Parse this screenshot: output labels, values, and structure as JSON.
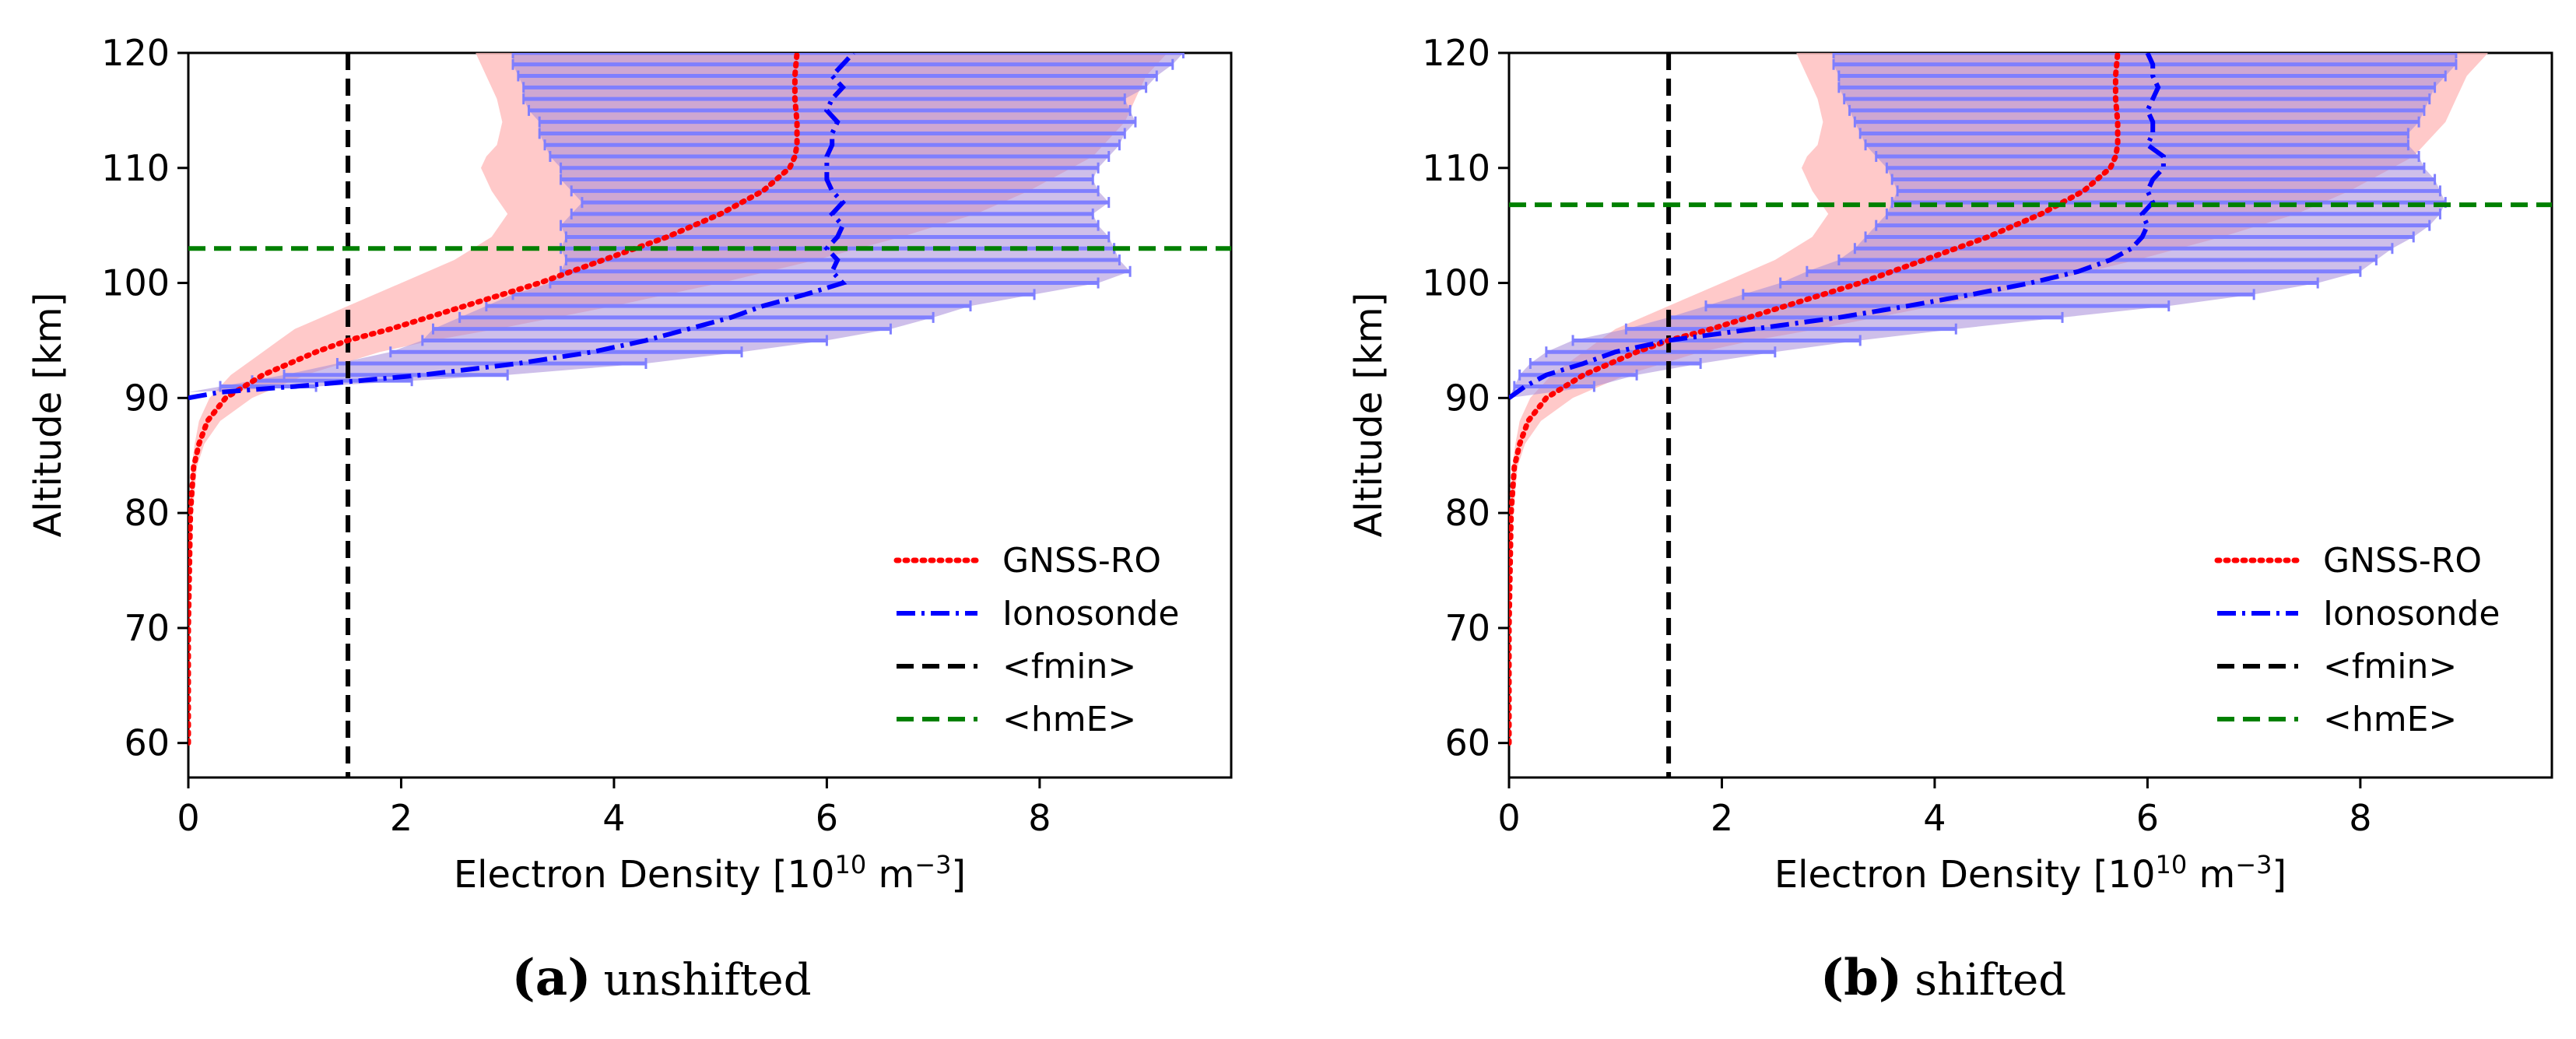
{
  "figure": {
    "captions": [
      {
        "letter": "(a)",
        "text": "unshifted"
      },
      {
        "letter": "(b)",
        "text": "shifted"
      }
    ]
  },
  "colors": {
    "gnss": "#ff0000",
    "ionosonde": "#0000ff",
    "fmin": "#000000",
    "hme": "#008000",
    "gnss_band": "#ffbcbc",
    "iono_bar": "#7f7fff",
    "iono_band": "#a58bd8"
  },
  "chart_data": [
    {
      "id": "a",
      "type": "line",
      "title": "",
      "xlabel": "Electron Density [10",
      "xlabel_sup1": "10",
      "xlabel_mid": " m",
      "xlabel_sup2": "−3",
      "xlabel_end": "]",
      "ylabel": "Altitude [km]",
      "xlim": [
        0,
        9.8
      ],
      "ylim": [
        57,
        120
      ],
      "xticks": [
        0,
        2,
        4,
        6,
        8
      ],
      "xtick_labels": [
        "0",
        "2",
        "4",
        "6",
        "8"
      ],
      "yticks": [
        60,
        70,
        80,
        90,
        100,
        110,
        120
      ],
      "ytick_labels": [
        "60",
        "70",
        "80",
        "90",
        "100",
        "110",
        "120"
      ],
      "legend": {
        "position": "lower-right",
        "entries": [
          "GNSS-RO",
          "Ionosonde",
          "<fmin>",
          "<hmE>"
        ]
      },
      "series": [
        {
          "name": "GNSS-RO",
          "style": "dotted",
          "altitude": [
            60,
            70,
            80,
            84,
            86,
            88,
            90,
            92,
            94,
            95,
            96,
            98,
            100,
            102,
            104,
            106,
            108,
            110,
            111,
            112,
            114,
            116,
            118,
            120
          ],
          "density": [
            0.0,
            0.0,
            0.02,
            0.05,
            0.1,
            0.18,
            0.35,
            0.7,
            1.2,
            1.5,
            1.9,
            2.6,
            3.3,
            3.9,
            4.5,
            5.0,
            5.4,
            5.65,
            5.7,
            5.72,
            5.72,
            5.7,
            5.7,
            5.72
          ],
          "band_low": [
            0.0,
            0.0,
            0.01,
            0.03,
            0.06,
            0.1,
            0.2,
            0.4,
            0.7,
            0.85,
            1.0,
            1.5,
            2.0,
            2.5,
            2.85,
            3.0,
            2.85,
            2.75,
            2.8,
            2.9,
            2.95,
            2.9,
            2.8,
            2.7
          ],
          "band_high": [
            0.0,
            0.0,
            0.04,
            0.08,
            0.15,
            0.3,
            0.6,
            1.1,
            1.8,
            2.3,
            2.9,
            4.0,
            5.0,
            5.9,
            6.7,
            7.4,
            7.9,
            8.3,
            8.5,
            8.6,
            8.8,
            8.9,
            9.0,
            9.2
          ]
        },
        {
          "name": "Ionosonde",
          "style": "dashdot",
          "altitude": [
            90,
            90.5,
            91,
            91.5,
            92,
            93,
            94,
            95,
            96,
            97,
            98,
            99,
            100,
            101,
            102,
            103,
            104,
            105,
            106,
            107,
            108,
            109,
            110,
            111,
            112,
            113,
            114,
            115,
            116,
            117,
            118,
            119,
            120
          ],
          "density": [
            0.0,
            0.3,
            1.0,
            1.6,
            2.2,
            3.1,
            3.8,
            4.3,
            4.7,
            5.1,
            5.4,
            5.8,
            6.15,
            6.05,
            6.1,
            6.0,
            6.1,
            6.15,
            6.05,
            6.15,
            6.05,
            6.0,
            6.0,
            6.0,
            6.05,
            6.05,
            6.1,
            6.0,
            6.05,
            6.15,
            6.05,
            6.15,
            6.25
          ],
          "err_low": [
            0.0,
            0.0,
            0.3,
            0.6,
            0.9,
            1.4,
            1.9,
            2.2,
            2.3,
            2.55,
            2.8,
            3.05,
            3.4,
            3.5,
            3.55,
            3.5,
            3.55,
            3.5,
            3.6,
            3.7,
            3.6,
            3.5,
            3.5,
            3.4,
            3.35,
            3.3,
            3.3,
            3.2,
            3.15,
            3.15,
            3.1,
            3.05,
            3.05
          ],
          "err_high": [
            0.0,
            0.0,
            1.2,
            2.1,
            3.0,
            4.3,
            5.2,
            6.0,
            6.6,
            7.0,
            7.35,
            7.95,
            8.55,
            8.85,
            8.75,
            8.7,
            8.65,
            8.55,
            8.5,
            8.65,
            8.55,
            8.5,
            8.55,
            8.65,
            8.75,
            8.8,
            8.9,
            8.85,
            8.8,
            9.0,
            9.1,
            9.25,
            9.35
          ]
        }
      ],
      "reference_lines": [
        {
          "name": "<fmin>",
          "orientation": "vertical",
          "value": 1.5
        },
        {
          "name": "<hmE>",
          "orientation": "horizontal",
          "value": 103
        }
      ]
    },
    {
      "id": "b",
      "type": "line",
      "title": "",
      "xlabel": "Electron Density [10",
      "xlabel_sup1": "10",
      "xlabel_mid": " m",
      "xlabel_sup2": "−3",
      "xlabel_end": "]",
      "ylabel": "Altitude [km]",
      "xlim": [
        0,
        9.8
      ],
      "ylim": [
        57,
        120
      ],
      "xticks": [
        0,
        2,
        4,
        6,
        8
      ],
      "xtick_labels": [
        "0",
        "2",
        "4",
        "6",
        "8"
      ],
      "yticks": [
        60,
        70,
        80,
        90,
        100,
        110,
        120
      ],
      "ytick_labels": [
        "60",
        "70",
        "80",
        "90",
        "100",
        "110",
        "120"
      ],
      "legend": {
        "position": "lower-right",
        "entries": [
          "GNSS-RO",
          "Ionosonde",
          "<fmin>",
          "<hmE>"
        ]
      },
      "series": [
        {
          "name": "GNSS-RO",
          "style": "dotted",
          "altitude": [
            60,
            70,
            80,
            84,
            86,
            88,
            90,
            92,
            94,
            95,
            96,
            98,
            100,
            102,
            104,
            106,
            108,
            110,
            111,
            112,
            114,
            116,
            118,
            120
          ],
          "density": [
            0.0,
            0.0,
            0.02,
            0.05,
            0.1,
            0.18,
            0.35,
            0.7,
            1.2,
            1.5,
            1.9,
            2.6,
            3.3,
            3.9,
            4.5,
            5.0,
            5.4,
            5.65,
            5.7,
            5.72,
            5.72,
            5.7,
            5.7,
            5.72
          ],
          "band_low": [
            0.0,
            0.0,
            0.01,
            0.03,
            0.06,
            0.1,
            0.2,
            0.4,
            0.7,
            0.85,
            1.0,
            1.5,
            2.0,
            2.5,
            2.85,
            3.0,
            2.85,
            2.75,
            2.8,
            2.9,
            2.95,
            2.9,
            2.8,
            2.7
          ],
          "band_high": [
            0.0,
            0.0,
            0.04,
            0.08,
            0.15,
            0.3,
            0.6,
            1.1,
            1.8,
            2.3,
            2.9,
            4.0,
            5.0,
            5.9,
            6.7,
            7.4,
            7.9,
            8.3,
            8.5,
            8.6,
            8.8,
            8.9,
            9.0,
            9.2
          ]
        },
        {
          "name": "Ionosonde",
          "style": "dashdot",
          "altitude": [
            90,
            91,
            92,
            93,
            94,
            95,
            96,
            97,
            98,
            99,
            100,
            101,
            102,
            103,
            104,
            105,
            106,
            107,
            108,
            109,
            110,
            111,
            112,
            113,
            114,
            115,
            116,
            117,
            118,
            119,
            120
          ],
          "density": [
            0.0,
            0.15,
            0.35,
            0.7,
            1.0,
            1.5,
            2.3,
            3.1,
            3.75,
            4.35,
            4.9,
            5.35,
            5.65,
            5.85,
            5.95,
            6.0,
            5.95,
            6.05,
            6.0,
            6.05,
            6.15,
            6.15,
            6.0,
            6.05,
            6.05,
            6.0,
            6.05,
            6.1,
            6.05,
            6.05,
            6.0
          ],
          "err_low": [
            0.0,
            0.05,
            0.1,
            0.2,
            0.35,
            0.6,
            1.1,
            1.5,
            1.85,
            2.2,
            2.55,
            2.8,
            3.1,
            3.25,
            3.35,
            3.45,
            3.55,
            3.6,
            3.65,
            3.6,
            3.55,
            3.45,
            3.35,
            3.3,
            3.25,
            3.2,
            3.15,
            3.1,
            3.1,
            3.05,
            3.05
          ],
          "err_high": [
            0.0,
            0.8,
            1.2,
            1.8,
            2.5,
            3.3,
            4.2,
            5.2,
            6.2,
            7.0,
            7.6,
            8.0,
            8.15,
            8.3,
            8.5,
            8.65,
            8.75,
            8.8,
            8.75,
            8.7,
            8.6,
            8.55,
            8.45,
            8.45,
            8.55,
            8.6,
            8.65,
            8.7,
            8.8,
            8.9,
            8.9
          ]
        }
      ],
      "reference_lines": [
        {
          "name": "<fmin>",
          "orientation": "vertical",
          "value": 1.5
        },
        {
          "name": "<hmE>",
          "orientation": "horizontal",
          "value": 106.8
        }
      ]
    }
  ]
}
